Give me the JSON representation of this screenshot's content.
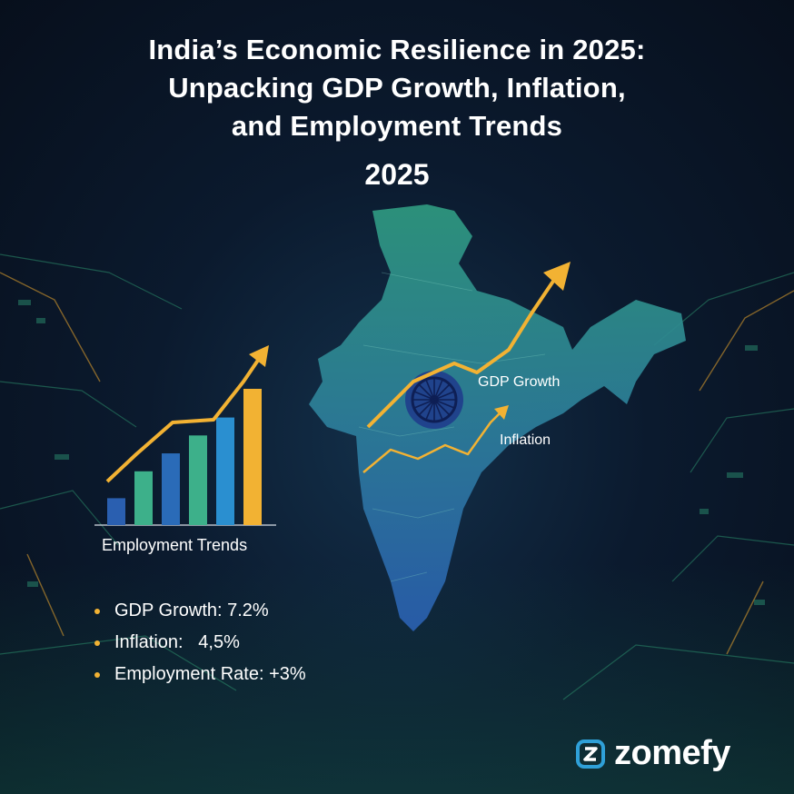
{
  "title_lines": [
    "India’s Economic Resilience in 2025:",
    "Unpacking GDP Growth, Inflation,",
    "and Employment Trends"
  ],
  "year": "2025",
  "map_labels": {
    "gdp": "GDP Growth",
    "inflation": "Inflation"
  },
  "chart": {
    "label": "Employment Trends",
    "values": [
      1.5,
      3,
      4,
      5,
      6,
      7.6
    ]
  },
  "stats": [
    {
      "text": "GDP Growth: 7.2%"
    },
    {
      "text": "Inflation:   4,5%"
    },
    {
      "text": "Employment Rate: +3%"
    }
  ],
  "brand": "zomefy",
  "colors": {
    "gold": "#f2b233",
    "teal": "#3db08a",
    "blue": "#2a6bb8",
    "bullet": "#f2b233"
  }
}
